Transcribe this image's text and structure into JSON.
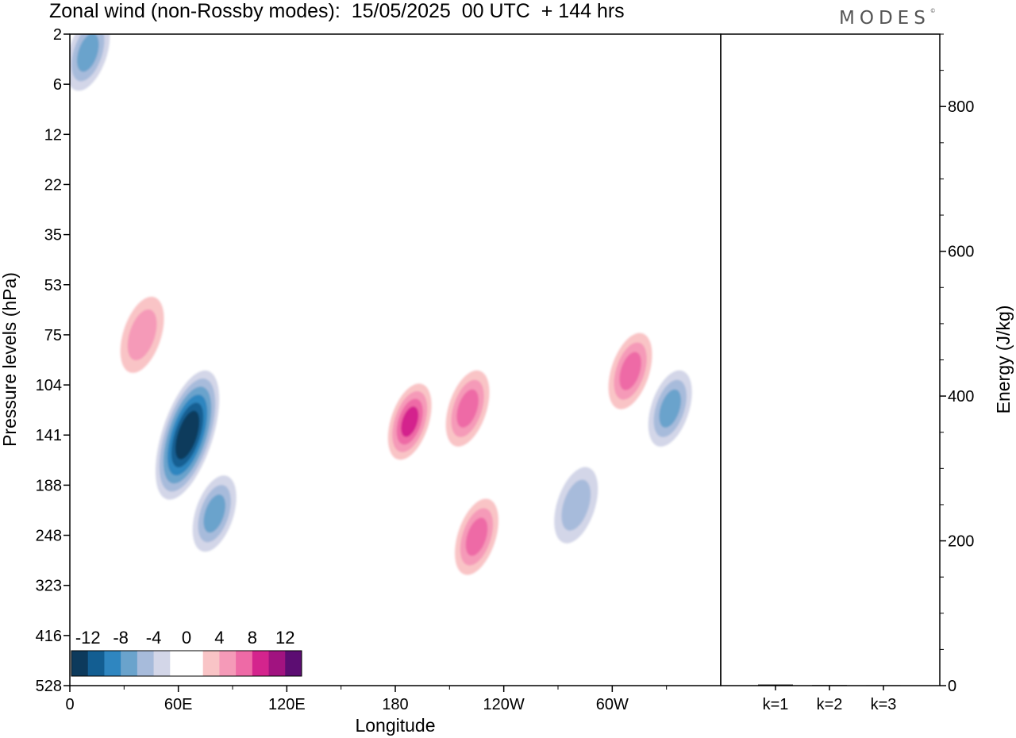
{
  "title": "Zonal wind (non-Rossby modes):  15/05/2025  00 UTC  + 144 hrs",
  "brand": "MODES",
  "brand_mark": "©",
  "chart_data": [
    {
      "type": "heatmap",
      "title": "Zonal wind (non-Rossby modes):  15/05/2025  00 UTC  + 144 hrs",
      "xlabel": "Longitude",
      "ylabel": "Pressure levels (hPa)",
      "x_ticks": [
        {
          "lon": 0,
          "label": "0"
        },
        {
          "lon": 60,
          "label": "60E"
        },
        {
          "lon": 120,
          "label": "120E"
        },
        {
          "lon": 180,
          "label": "180"
        },
        {
          "lon": 240,
          "label": "120W"
        },
        {
          "lon": 300,
          "label": "60W"
        }
      ],
      "xlim": [
        0,
        360
      ],
      "y_levels": [
        "2",
        "6",
        "12",
        "22",
        "35",
        "53",
        "75",
        "104",
        "141",
        "188",
        "248",
        "323",
        "416",
        "528"
      ],
      "y_scale": "log-pressure, top = 2 hPa, bottom = 528 hPa",
      "colorbar": {
        "labels": [
          "-12",
          "-8",
          "-4",
          "0",
          "4",
          "8",
          "12"
        ],
        "colors": [
          "#0d3a5c",
          "#135e92",
          "#2f86c0",
          "#6aa3cc",
          "#a7bbdb",
          "#d3d6e8",
          "#ffffff",
          "#ffffff",
          "#f9c4c6",
          "#f59ab8",
          "#ee6aa6",
          "#d4248d",
          "#a11380",
          "#5c0d72"
        ]
      },
      "features": [
        {
          "lon": 65,
          "level": "141",
          "value": -14,
          "note": "strongest easterly core"
        },
        {
          "lon": 10,
          "level": "3",
          "value": -6
        },
        {
          "lon": 80,
          "level": "220",
          "value": -6
        },
        {
          "lon": 280,
          "level": "210",
          "value": -5
        },
        {
          "lon": 332,
          "level": "120",
          "value": -6
        },
        {
          "lon": 188,
          "level": "130",
          "value": 8,
          "note": "strongest westerly core"
        },
        {
          "lon": 220,
          "level": "120",
          "value": 6
        },
        {
          "lon": 225,
          "level": "250",
          "value": 6
        },
        {
          "lon": 310,
          "level": "95",
          "value": 7
        },
        {
          "lon": 40,
          "level": "75",
          "value": 5
        }
      ]
    },
    {
      "type": "bar",
      "ylabel": "Energy (J/kg)",
      "categories": [
        "k=1",
        "k=2",
        "k=3"
      ],
      "values": [
        1.5,
        0.8,
        0.6
      ],
      "ylim": [
        0,
        900
      ],
      "y_ticks": [
        0,
        200,
        400,
        600,
        800
      ]
    }
  ]
}
